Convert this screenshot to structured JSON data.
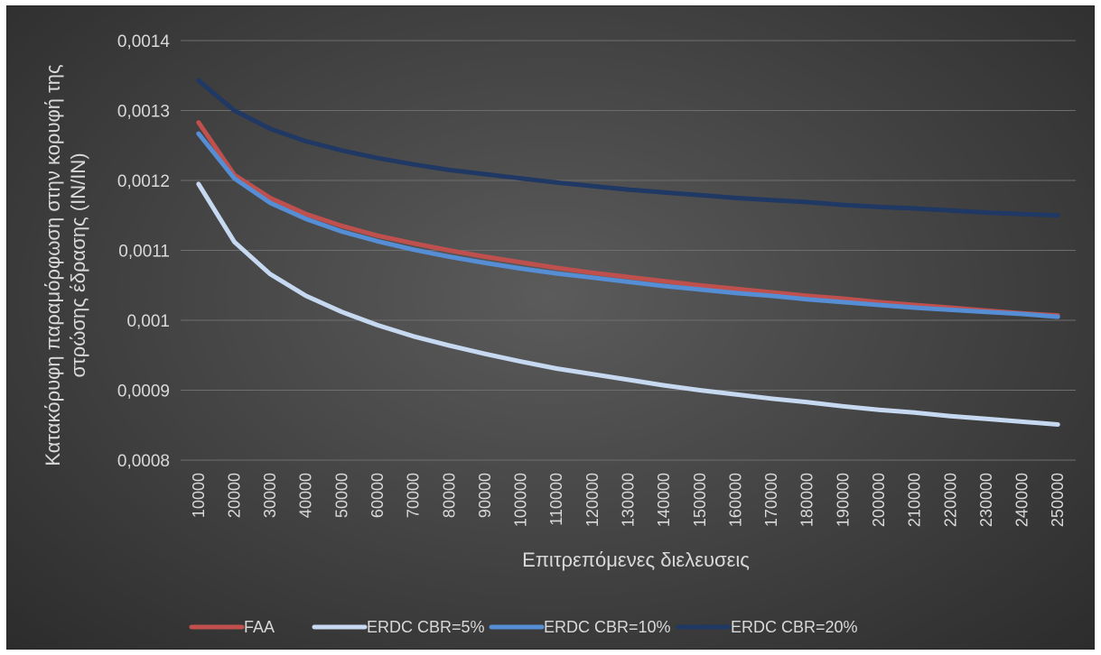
{
  "chart_data": {
    "type": "line",
    "title": "",
    "xlabel": "Επιτρεπόμενες διελευσεις",
    "ylabel_lines": [
      "Κατακόρυφη παραμόρφωση στην κορυφή της",
      "στρώσης έδρασης (IN/IN)"
    ],
    "ylim": [
      0.0008,
      0.0014
    ],
    "y_ticks": [
      "0,0008",
      "0,0009",
      "0,001",
      "0,0011",
      "0,0012",
      "0,0013",
      "0,0014"
    ],
    "y_tick_values": [
      0.0008,
      0.0009,
      0.001,
      0.0011,
      0.0012,
      0.0013,
      0.0014
    ],
    "categories": [
      "10000",
      "20000",
      "30000",
      "40000",
      "50000",
      "60000",
      "70000",
      "80000",
      "90000",
      "100000",
      "110000",
      "120000",
      "130000",
      "140000",
      "150000",
      "160000",
      "170000",
      "180000",
      "190000",
      "200000",
      "210000",
      "220000",
      "230000",
      "240000",
      "250000"
    ],
    "grid": true,
    "legend_position": "bottom",
    "series": [
      {
        "name": "FAA",
        "color": "#c0504d",
        "values": [
          0.001283,
          0.001208,
          0.001175,
          0.001152,
          0.001135,
          0.001121,
          0.00111,
          0.0011,
          0.001091,
          0.001083,
          0.001075,
          0.001068,
          0.001062,
          0.001056,
          0.00105,
          0.001045,
          0.00104,
          0.001035,
          0.001031,
          0.001026,
          0.001022,
          0.001018,
          0.001014,
          0.00101,
          0.001007
        ]
      },
      {
        "name": "ERDC CBR=5%",
        "color": "#c6d9f1",
        "values": [
          0.001195,
          0.001112,
          0.001066,
          0.001035,
          0.001012,
          0.000993,
          0.000977,
          0.000964,
          0.000952,
          0.000941,
          0.000931,
          0.000923,
          0.000915,
          0.000907,
          0.0009,
          0.000894,
          0.000888,
          0.000883,
          0.000877,
          0.000872,
          0.000868,
          0.000863,
          0.000859,
          0.000855,
          0.000851
        ]
      },
      {
        "name": "ERDC CBR=10%",
        "color": "#558ed5",
        "values": [
          0.001267,
          0.001203,
          0.001168,
          0.001145,
          0.001127,
          0.001113,
          0.001101,
          0.001091,
          0.001082,
          0.001074,
          0.001067,
          0.001061,
          0.001055,
          0.001049,
          0.001044,
          0.001039,
          0.001035,
          0.00103,
          0.001026,
          0.001022,
          0.001018,
          0.001015,
          0.001012,
          0.001009,
          0.001005
        ]
      },
      {
        "name": "ERDC CBR=20%",
        "color": "#1f3864",
        "values": [
          0.001343,
          0.0013,
          0.001274,
          0.001256,
          0.001243,
          0.001232,
          0.001223,
          0.001215,
          0.001209,
          0.001203,
          0.001197,
          0.001192,
          0.001187,
          0.001183,
          0.001179,
          0.001175,
          0.001172,
          0.001169,
          0.001165,
          0.001162,
          0.00116,
          0.001157,
          0.001154,
          0.001152,
          0.00115
        ]
      }
    ]
  }
}
